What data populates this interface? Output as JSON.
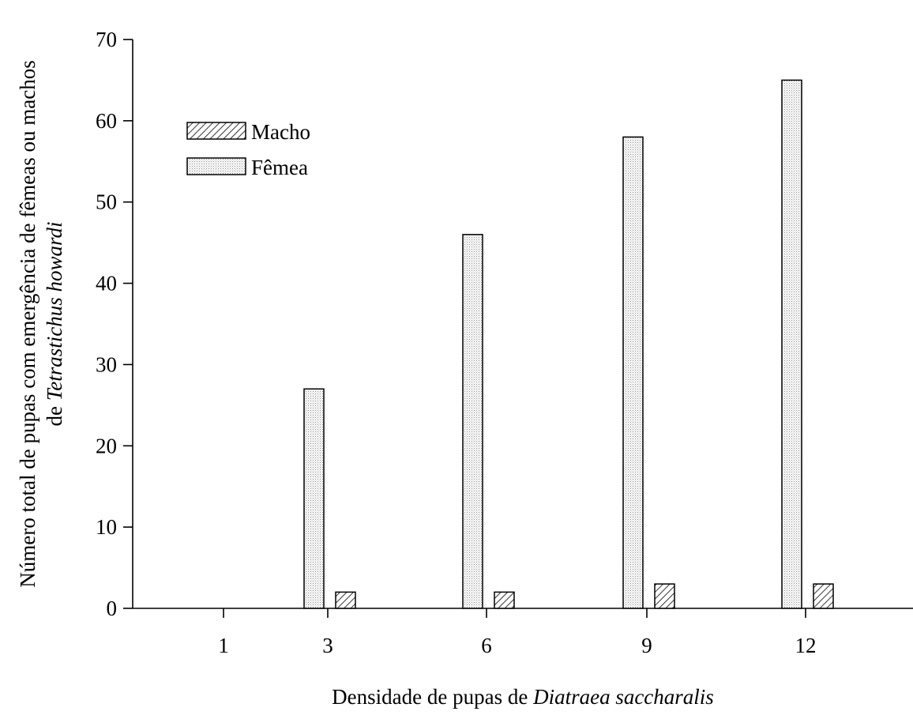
{
  "chart_data": {
    "type": "bar",
    "categories": [
      "1",
      "3",
      "6",
      "9",
      "12"
    ],
    "series": [
      {
        "name": "Fêmea",
        "pattern": "dotted",
        "values": [
          0,
          27,
          46,
          58,
          65
        ]
      },
      {
        "name": "Macho",
        "pattern": "hatched",
        "values": [
          0,
          2,
          2,
          3,
          3
        ]
      }
    ],
    "legend_order": [
      "Macho",
      "Fêmea"
    ],
    "legend_position": "top-left",
    "xlabel_plain": "Densidade de pupas de ",
    "xlabel_italic": "Diatraea saccharalis",
    "ylabel_line1": "Número total de pupas com emergência de fêmeas ou machos",
    "ylabel_line2_plain": "de ",
    "ylabel_line2_italic": "Tetrastichus howardi",
    "ylim": [
      0,
      70
    ],
    "yticks": [
      0,
      10,
      20,
      30,
      40,
      50,
      60,
      70
    ],
    "grid": false
  }
}
